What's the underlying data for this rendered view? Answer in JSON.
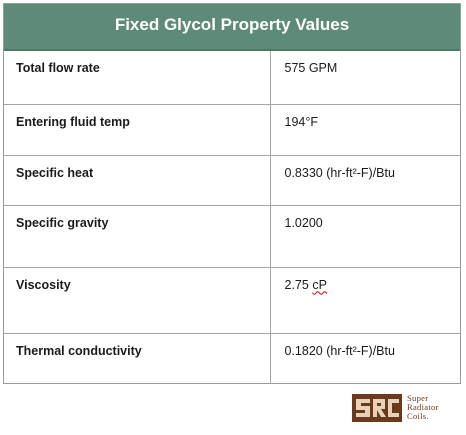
{
  "title": "Fixed Glycol Property Values",
  "rows": [
    {
      "label": "Total flow rate",
      "value": "575 GPM"
    },
    {
      "label": "Entering fluid temp",
      "value": "194°F"
    },
    {
      "label": "Specific heat",
      "value": "0.8330 (hr-ft²-F)/Btu"
    },
    {
      "label": "Specific gravity",
      "value": "1.0200"
    },
    {
      "label": "Viscosity",
      "value_main": "2.75 ",
      "value_unit": "cP"
    },
    {
      "label": "Thermal conductivity",
      "value": "0.1820 (hr-ft²-F)/Btu"
    }
  ],
  "logo": {
    "mark": "SRC",
    "line1": "Super",
    "line2": "Radiator",
    "line3": "Coils."
  },
  "colors": {
    "header": "#5e8b78",
    "logo_brown": "#6b3a1c"
  }
}
